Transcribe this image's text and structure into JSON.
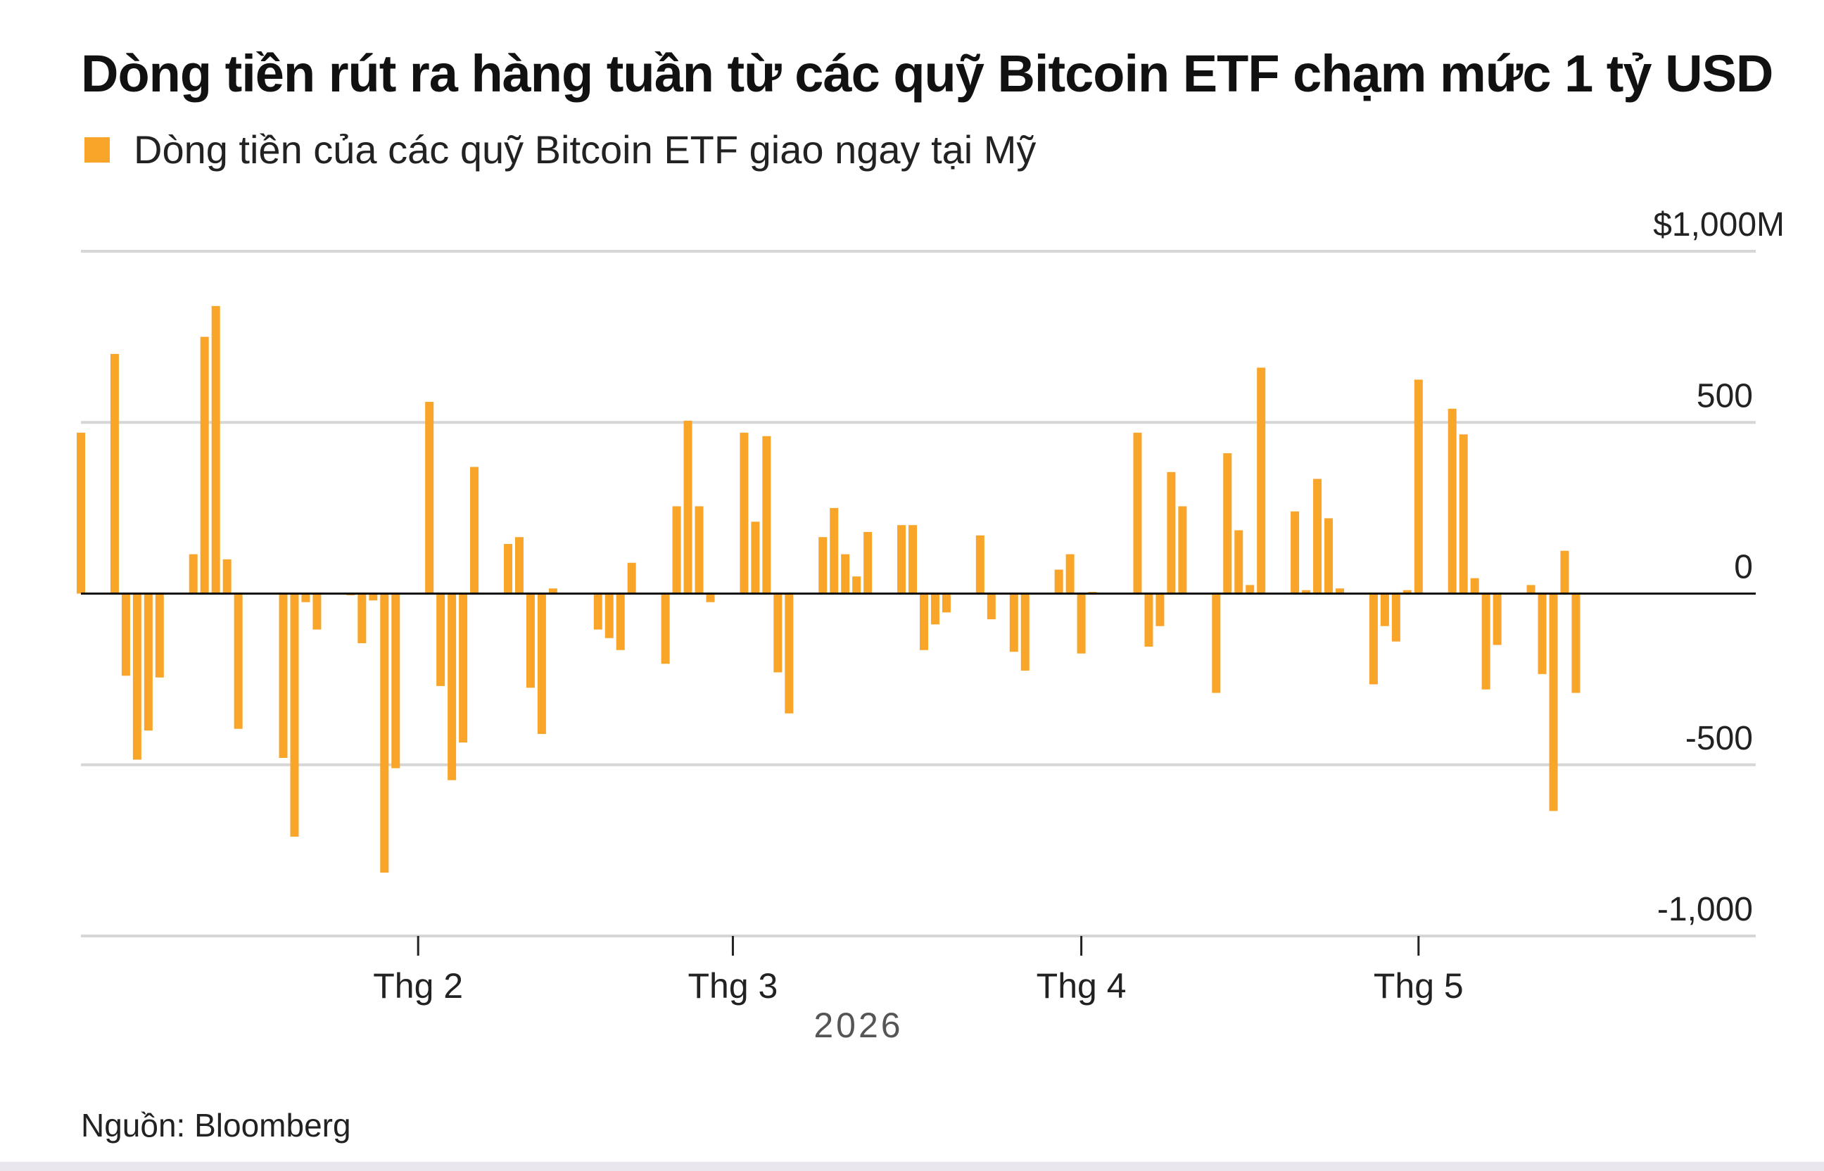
{
  "title": "Dòng tiền rút ra hàng tuần từ các quỹ Bitcoin ETF chạm mức 1 tỷ USD",
  "legend": {
    "label": "Dòng tiền của các quỹ Bitcoin ETF giao ngay tại Mỹ",
    "color": "#f9a52a"
  },
  "source": "Nguồn: Bloomberg",
  "chart_data": {
    "type": "bar",
    "title": "Dòng tiền rút ra hàng tuần từ các quỹ Bitcoin ETF chạm mức 1 tỷ USD",
    "xlabel": "2026",
    "ylabel": "",
    "ylim": [
      -1000,
      1000
    ],
    "y_ticks": [
      {
        "value": 1000,
        "label": "$1,000M"
      },
      {
        "value": 500,
        "label": "500"
      },
      {
        "value": 0,
        "label": "0"
      },
      {
        "value": -500,
        "label": "-500"
      },
      {
        "value": -1000,
        "label": "-1,000"
      }
    ],
    "x_start": "2026-01-02",
    "x_end": "2026-05-31",
    "month_ticks": [
      {
        "date": "2026-02-01",
        "label": "Thg 2"
      },
      {
        "date": "2026-03-01",
        "label": "Thg 3"
      },
      {
        "date": "2026-04-01",
        "label": "Thg 4"
      },
      {
        "date": "2026-05-01",
        "label": "Thg 5"
      }
    ],
    "grid": true,
    "legend_position": "top-left",
    "series": [
      {
        "name": "Dòng tiền của các quỹ Bitcoin ETF giao ngay tại Mỹ",
        "color": "#f9a52a",
        "points": [
          [
            "2026-01-02",
            470
          ],
          [
            "2026-01-05",
            700
          ],
          [
            "2026-01-06",
            -240
          ],
          [
            "2026-01-07",
            -485
          ],
          [
            "2026-01-08",
            -400
          ],
          [
            "2026-01-09",
            -245
          ],
          [
            "2026-01-12",
            115
          ],
          [
            "2026-01-13",
            750
          ],
          [
            "2026-01-14",
            840
          ],
          [
            "2026-01-15",
            100
          ],
          [
            "2026-01-16",
            -395
          ],
          [
            "2026-01-20",
            -480
          ],
          [
            "2026-01-21",
            -710
          ],
          [
            "2026-01-22",
            -25
          ],
          [
            "2026-01-23",
            -105
          ],
          [
            "2026-01-26",
            -5
          ],
          [
            "2026-01-27",
            -145
          ],
          [
            "2026-01-28",
            -20
          ],
          [
            "2026-01-29",
            -815
          ],
          [
            "2026-01-30",
            -510
          ],
          [
            "2026-02-02",
            560
          ],
          [
            "2026-02-03",
            -270
          ],
          [
            "2026-02-04",
            -545
          ],
          [
            "2026-02-05",
            -435
          ],
          [
            "2026-02-06",
            370
          ],
          [
            "2026-02-09",
            145
          ],
          [
            "2026-02-10",
            165
          ],
          [
            "2026-02-11",
            -275
          ],
          [
            "2026-02-12",
            -410
          ],
          [
            "2026-02-13",
            15
          ],
          [
            "2026-02-17",
            -105
          ],
          [
            "2026-02-18",
            -130
          ],
          [
            "2026-02-19",
            -165
          ],
          [
            "2026-02-20",
            90
          ],
          [
            "2026-02-23",
            -205
          ],
          [
            "2026-02-24",
            255
          ],
          [
            "2026-02-25",
            505
          ],
          [
            "2026-02-26",
            255
          ],
          [
            "2026-02-27",
            -25
          ],
          [
            "2026-03-02",
            470
          ],
          [
            "2026-03-03",
            210
          ],
          [
            "2026-03-04",
            460
          ],
          [
            "2026-03-05",
            -230
          ],
          [
            "2026-03-06",
            -350
          ],
          [
            "2026-03-09",
            165
          ],
          [
            "2026-03-10",
            250
          ],
          [
            "2026-03-11",
            115
          ],
          [
            "2026-03-12",
            50
          ],
          [
            "2026-03-13",
            180
          ],
          [
            "2026-03-16",
            200
          ],
          [
            "2026-03-17",
            200
          ],
          [
            "2026-03-18",
            -165
          ],
          [
            "2026-03-19",
            -90
          ],
          [
            "2026-03-20",
            -55
          ],
          [
            "2026-03-23",
            170
          ],
          [
            "2026-03-24",
            -75
          ],
          [
            "2026-03-26",
            -170
          ],
          [
            "2026-03-27",
            -225
          ],
          [
            "2026-03-30",
            70
          ],
          [
            "2026-03-31",
            115
          ],
          [
            "2026-04-01",
            -175
          ],
          [
            "2026-04-02",
            5
          ],
          [
            "2026-04-06",
            470
          ],
          [
            "2026-04-07",
            -155
          ],
          [
            "2026-04-08",
            -95
          ],
          [
            "2026-04-09",
            355
          ],
          [
            "2026-04-10",
            255
          ],
          [
            "2026-04-13",
            -290
          ],
          [
            "2026-04-14",
            410
          ],
          [
            "2026-04-15",
            185
          ],
          [
            "2026-04-16",
            25
          ],
          [
            "2026-04-17",
            660
          ],
          [
            "2026-04-20",
            240
          ],
          [
            "2026-04-21",
            10
          ],
          [
            "2026-04-22",
            335
          ],
          [
            "2026-04-23",
            220
          ],
          [
            "2026-04-24",
            15
          ],
          [
            "2026-04-27",
            -265
          ],
          [
            "2026-04-28",
            -95
          ],
          [
            "2026-04-29",
            -140
          ],
          [
            "2026-04-30",
            10
          ],
          [
            "2026-05-01",
            625
          ],
          [
            "2026-05-04",
            540
          ],
          [
            "2026-05-05",
            465
          ],
          [
            "2026-05-06",
            45
          ],
          [
            "2026-05-07",
            -280
          ],
          [
            "2026-05-08",
            -150
          ],
          [
            "2026-05-11",
            25
          ],
          [
            "2026-05-12",
            -235
          ],
          [
            "2026-05-13",
            -635
          ],
          [
            "2026-05-14",
            125
          ],
          [
            "2026-05-15",
            -290
          ]
        ]
      }
    ]
  }
}
